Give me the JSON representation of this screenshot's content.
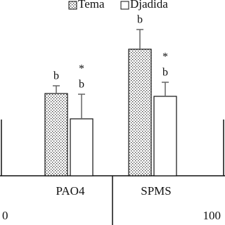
{
  "chart_data": {
    "type": "bar",
    "categories": [
      "PAO4",
      "SPMS"
    ],
    "bottom_labels": [
      "0",
      "100"
    ],
    "ylim": [
      0,
      200
    ],
    "series": [
      {
        "name": "Tema",
        "color": "#ffffff",
        "pattern": "dots",
        "values": [
          117,
          180
        ],
        "errors": [
          11,
          28
        ],
        "annotations": [
          [
            "b"
          ],
          [
            "b"
          ]
        ]
      },
      {
        "name": "Djadida",
        "color": "#ffffff",
        "pattern": "none",
        "values": [
          81,
          113
        ],
        "errors": [
          35,
          20
        ],
        "annotations": [
          [
            "*",
            "b"
          ],
          [
            "*",
            "b"
          ]
        ]
      }
    ]
  }
}
